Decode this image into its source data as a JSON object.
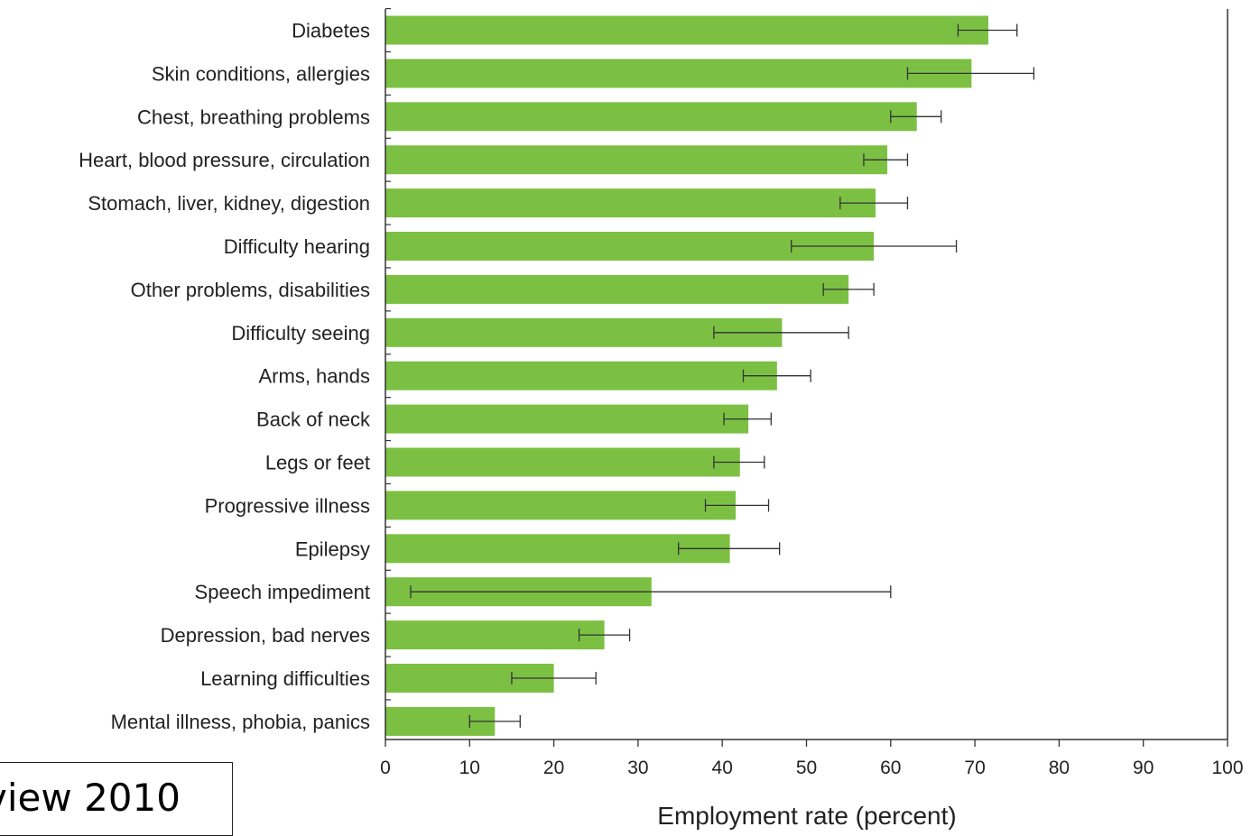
{
  "chart_data": {
    "type": "bar",
    "orientation": "horizontal",
    "bar_color": "#7bc043",
    "categories": [
      "Diabetes",
      "Skin conditions, allergies",
      "Chest, breathing problems",
      "Heart, blood pressure, circulation",
      "Stomach, liver, kidney, digestion",
      "Difficulty hearing",
      "Other problems, disabilities",
      "Difficulty seeing",
      "Arms, hands",
      "Back of neck",
      "Legs or feet",
      "Progressive illness",
      "Epilepsy",
      "Speech impediment",
      "Depression, bad nerves",
      "Learning difficulties",
      "Mental illness, phobia, panics"
    ],
    "values": [
      71.6,
      69.6,
      63.1,
      59.6,
      58.2,
      58.0,
      55.0,
      47.1,
      46.5,
      43.1,
      42.1,
      41.6,
      40.9,
      31.6,
      26.0,
      20.0,
      13.0
    ],
    "error_low": [
      68.0,
      62.0,
      60.0,
      56.8,
      54.0,
      48.2,
      52.0,
      39.0,
      42.5,
      40.2,
      39.0,
      38.0,
      34.8,
      3.0,
      23.0,
      15.0,
      10.0
    ],
    "error_high": [
      75.0,
      77.0,
      66.0,
      62.0,
      62.0,
      67.8,
      58.0,
      55.0,
      50.5,
      45.8,
      45.0,
      45.5,
      46.8,
      60.0,
      29.0,
      25.0,
      16.0
    ],
    "xlim": [
      0,
      100
    ],
    "xticks": [
      "0",
      "10",
      "20",
      "30",
      "40",
      "50",
      "60",
      "70",
      "80",
      "90",
      "100"
    ],
    "xlabel": "Employment rate (percent)",
    "ylabel": "",
    "grid": false
  },
  "source_label": "view 2010"
}
